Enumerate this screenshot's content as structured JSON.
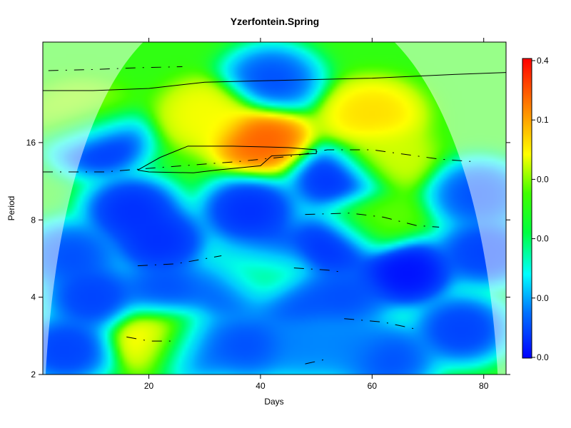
{
  "chart_data": {
    "type": "heatmap",
    "title": "Yzerfontein.Spring",
    "xlabel": "Days",
    "ylabel": "Period",
    "xlim": [
      1,
      84
    ],
    "ylim_log2": [
      1,
      5.3
    ],
    "x_ticks": [
      20,
      40,
      60,
      80
    ],
    "y_ticks": [
      2,
      4,
      8,
      16
    ],
    "colorbar": {
      "tick_labels": [
        "0.4",
        "0.1",
        "0.0",
        "0.0",
        "0.0",
        "0.0"
      ],
      "colors": [
        "#0000ff",
        "#00b0ff",
        "#00ffff",
        "#00ff80",
        "#00ff00",
        "#a0ff00",
        "#ffff00",
        "#ffa000",
        "#ff4000",
        "#ff0000"
      ]
    },
    "colorscale_note_hidden": "",
    "power_features": [
      {
        "day": 40,
        "period": 16.5,
        "power": 0.9
      },
      {
        "day": 31,
        "period": 20.5,
        "power": 0.7
      },
      {
        "day": 60,
        "period": 20.5,
        "power": 0.75
      },
      {
        "day": 42,
        "period": 28,
        "power": 0.1
      },
      {
        "day": 62,
        "period": 14,
        "power": 0.65
      },
      {
        "day": 8,
        "period": 20,
        "power": 0.6
      },
      {
        "day": 22,
        "period": 2.8,
        "power": 0.75
      },
      {
        "day": 40,
        "period": 5,
        "power": 0.55
      },
      {
        "day": 60,
        "period": 8,
        "power": 0.55
      },
      {
        "day": 11,
        "period": 16,
        "power": 0.05
      },
      {
        "day": 17,
        "period": 8.7,
        "power": 0.05
      },
      {
        "day": 38,
        "period": 8.7,
        "power": 0.05
      },
      {
        "day": 54,
        "period": 11.5,
        "power": 0.05
      },
      {
        "day": 22,
        "period": 6.6,
        "power": 0.05
      },
      {
        "day": 53,
        "period": 6.4,
        "power": 0.05
      },
      {
        "day": 41,
        "period": 5.8,
        "power": 0.05
      },
      {
        "day": 66,
        "period": 5,
        "power": 0.0
      },
      {
        "day": 23,
        "period": 4.2,
        "power": 0.1
      },
      {
        "day": 35,
        "period": 4.3,
        "power": 0.1
      },
      {
        "day": 46,
        "period": 3.9,
        "power": 0.1
      },
      {
        "day": 55,
        "period": 4,
        "power": 0.1
      },
      {
        "day": 10,
        "period": 4,
        "power": 0.08
      },
      {
        "day": 5,
        "period": 2.5,
        "power": 0.08
      },
      {
        "day": 28,
        "period": 2.6,
        "power": 0.1
      },
      {
        "day": 38,
        "period": 2.6,
        "power": 0.1
      },
      {
        "day": 48,
        "period": 2.6,
        "power": 0.15
      },
      {
        "day": 56,
        "period": 2.6,
        "power": 0.15
      },
      {
        "day": 63,
        "period": 2.3,
        "power": 0.1
      },
      {
        "day": 76,
        "period": 3,
        "power": 0.08
      },
      {
        "day": 6,
        "period": 5.8,
        "power": 0.1
      },
      {
        "day": 79,
        "period": 10,
        "power": 0.1
      },
      {
        "day": 80,
        "period": 6,
        "power": 0.08
      }
    ],
    "power_floor": 0.5,
    "significance_contours": [
      [
        [
          18,
          12.5
        ],
        [
          22,
          14
        ],
        [
          27,
          15.5
        ],
        [
          35,
          15.5
        ],
        [
          45,
          15.3
        ],
        [
          50,
          15
        ],
        [
          50,
          14.5
        ],
        [
          42,
          14.2
        ],
        [
          40,
          13
        ],
        [
          32,
          12.5
        ],
        [
          28,
          12.2
        ],
        [
          20,
          12.3
        ],
        [
          18,
          12.5
        ]
      ],
      [
        [
          1,
          25.5
        ],
        [
          10,
          25.5
        ],
        [
          20,
          26
        ],
        [
          30,
          27.5
        ],
        [
          45,
          28
        ],
        [
          60,
          28.5
        ],
        [
          75,
          29.5
        ],
        [
          84,
          30
        ]
      ]
    ],
    "ridge_lines": [
      [
        [
          1,
          12.3
        ],
        [
          12,
          12.3
        ],
        [
          22,
          12.8
        ],
        [
          36,
          13.5
        ],
        [
          46,
          14.2
        ],
        [
          52,
          15
        ],
        [
          60,
          15
        ],
        [
          72,
          13.8
        ],
        [
          78,
          13.5
        ]
      ],
      [
        [
          18,
          5.3
        ],
        [
          25,
          5.4
        ],
        [
          33,
          5.8
        ]
      ],
      [
        [
          48,
          8.4
        ],
        [
          56,
          8.5
        ],
        [
          62,
          8.2
        ],
        [
          68,
          7.6
        ],
        [
          72,
          7.5
        ]
      ],
      [
        [
          46,
          5.2
        ],
        [
          52,
          5.1
        ],
        [
          55,
          5
        ]
      ],
      [
        [
          55,
          3.3
        ],
        [
          62,
          3.2
        ],
        [
          68,
          3
        ]
      ],
      [
        [
          16,
          2.8
        ],
        [
          20,
          2.7
        ],
        [
          24,
          2.7
        ]
      ],
      [
        [
          48,
          2.2
        ],
        [
          52,
          2.3
        ]
      ],
      [
        [
          2,
          30.5
        ],
        [
          10,
          30.8
        ],
        [
          18,
          31.3
        ],
        [
          26,
          31.6
        ]
      ]
    ],
    "cone_of_influence": "shaded outside parabola from day ~1 to ~84, peak at day ~42"
  }
}
